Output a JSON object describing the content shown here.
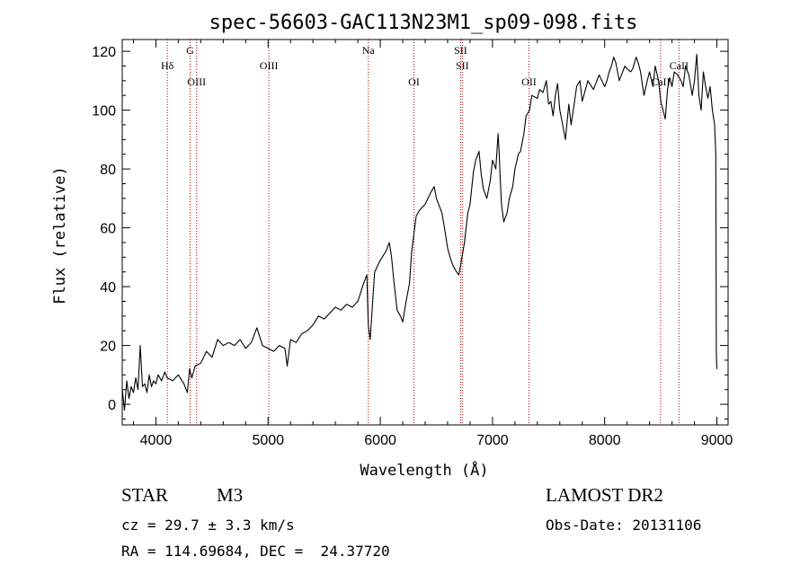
{
  "chart_data": {
    "type": "line",
    "title": "spec-56603-GAC113N23M1_sp09-098.fits",
    "xlabel": "Wavelength (Å)",
    "ylabel": "Flux (relative)",
    "xlim": [
      3700,
      9100
    ],
    "ylim": [
      -7,
      124
    ],
    "xticks": [
      4000,
      5000,
      6000,
      7000,
      8000,
      9000
    ],
    "yticks": [
      0,
      20,
      40,
      60,
      80,
      100,
      120
    ],
    "grid": false,
    "series": [
      {
        "color": "#000000",
        "x": [
          3700,
          3720,
          3740,
          3760,
          3780,
          3800,
          3820,
          3840,
          3860,
          3880,
          3900,
          3920,
          3940,
          3960,
          3980,
          4000,
          4020,
          4050,
          4080,
          4100,
          4150,
          4200,
          4250,
          4280,
          4300,
          4320,
          4350,
          4400,
          4450,
          4500,
          4550,
          4600,
          4650,
          4700,
          4750,
          4800,
          4850,
          4900,
          4950,
          5000,
          5050,
          5100,
          5150,
          5170,
          5200,
          5250,
          5300,
          5350,
          5400,
          5450,
          5500,
          5550,
          5600,
          5650,
          5700,
          5750,
          5800,
          5850,
          5880,
          5893,
          5910,
          5950,
          6000,
          6050,
          6080,
          6100,
          6120,
          6150,
          6180,
          6200,
          6230,
          6260,
          6280,
          6300,
          6320,
          6350,
          6400,
          6450,
          6480,
          6500,
          6520,
          6550,
          6580,
          6600,
          6630,
          6650,
          6680,
          6700,
          6720,
          6750,
          6780,
          6800,
          6830,
          6850,
          6880,
          6900,
          6920,
          6950,
          6980,
          7000,
          7030,
          7050,
          7060,
          7070,
          7080,
          7100,
          7130,
          7150,
          7180,
          7200,
          7230,
          7250,
          7280,
          7300,
          7330,
          7350,
          7400,
          7420,
          7450,
          7480,
          7500,
          7520,
          7540,
          7560,
          7580,
          7600,
          7620,
          7650,
          7680,
          7700,
          7720,
          7750,
          7780,
          7800,
          7850,
          7900,
          7950,
          8000,
          8020,
          8040,
          8060,
          8080,
          8100,
          8130,
          8150,
          8180,
          8200,
          8230,
          8250,
          8280,
          8300,
          8320,
          8350,
          8380,
          8400,
          8430,
          8450,
          8480,
          8500,
          8520,
          8540,
          8560,
          8580,
          8600,
          8620,
          8650,
          8680,
          8700,
          8720,
          8750,
          8780,
          8800,
          8820,
          8840,
          8860,
          8880,
          8900,
          8920,
          8940,
          8960,
          8980,
          8990,
          8995,
          9000
        ],
        "y": [
          5,
          -2,
          8,
          2,
          6,
          4,
          9,
          5,
          20,
          6,
          7,
          4,
          10,
          6,
          8,
          7,
          10,
          8,
          11,
          9,
          8,
          10,
          7,
          4,
          12,
          9,
          13,
          14,
          18,
          16,
          22,
          20,
          21,
          20,
          22,
          19,
          21,
          26,
          20,
          19,
          18,
          20,
          19,
          13,
          22,
          21,
          24,
          25,
          27,
          30,
          29,
          31,
          33,
          32,
          34,
          33,
          35,
          41,
          44,
          27,
          22,
          45,
          49,
          52,
          55,
          50,
          42,
          32,
          30,
          28,
          35,
          41,
          52,
          58,
          64,
          66,
          68,
          72,
          74,
          70,
          68,
          65,
          58,
          53,
          49,
          47,
          45,
          44,
          48,
          55,
          65,
          68,
          79,
          83,
          86,
          78,
          73,
          70,
          76,
          83,
          80,
          92,
          85,
          76,
          68,
          62,
          65,
          70,
          74,
          80,
          85,
          86,
          92,
          98,
          100,
          105,
          104,
          107,
          106,
          110,
          102,
          103,
          98,
          105,
          109,
          100,
          96,
          90,
          102,
          95,
          100,
          108,
          110,
          103,
          110,
          107,
          112,
          108,
          110,
          113,
          115,
          118,
          116,
          110,
          112,
          115,
          114,
          113,
          114,
          118,
          116,
          113,
          105,
          110,
          113,
          108,
          115,
          110,
          103,
          100,
          97,
          107,
          111,
          108,
          113,
          112,
          110,
          108,
          115,
          112,
          105,
          110,
          119,
          105,
          100,
          113,
          108,
          104,
          108,
          100,
          95,
          85,
          18,
          12
        ]
      }
    ],
    "lines": [
      {
        "name": "Hδ",
        "x": 4102,
        "label_row": 1
      },
      {
        "name": "G",
        "x": 4305,
        "label_row": 0
      },
      {
        "name": "OIII",
        "x": 4363,
        "label_row": 2
      },
      {
        "name": "OIII",
        "x": 5007,
        "label_row": 1
      },
      {
        "name": "Na",
        "x": 5893,
        "label_row": 0
      },
      {
        "name": "OI",
        "x": 6300,
        "label_row": 2
      },
      {
        "name": "SII",
        "x": 6716,
        "label_row": 0
      },
      {
        "name": "SII",
        "x": 6731,
        "label_row": 1
      },
      {
        "name": "OII",
        "x": 7325,
        "label_row": 2
      },
      {
        "name": "CaII",
        "x": 8498,
        "label_row": 2
      },
      {
        "name": "CaII",
        "x": 8662,
        "label_row": 1
      }
    ],
    "line_color": "#aa0000"
  },
  "info": {
    "object_class": "STAR",
    "subclass": "M3",
    "survey": "LAMOST DR2",
    "cz": "cz = 29.7 ± 3.3 km/s",
    "obs_date": "Obs-Date: 20131106",
    "coords": "RA = 114.69684, DEC =  24.37720"
  }
}
